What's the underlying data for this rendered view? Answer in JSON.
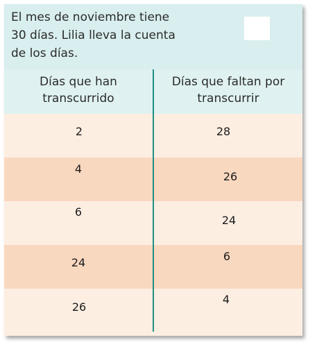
{
  "prompt": {
    "lines": [
      "El mes de noviembre tiene",
      "30 días. Lilia lleva la cuenta",
      "de los días."
    ]
  },
  "table": {
    "headers": [
      [
        "Días que han",
        "transcurrido"
      ],
      [
        "Días que faltan por",
        "transcurrir"
      ]
    ],
    "rows": [
      {
        "elapsed": "2",
        "remaining": "28"
      },
      {
        "elapsed": "4",
        "remaining": "26"
      },
      {
        "elapsed": "6",
        "remaining": "24"
      },
      {
        "elapsed": "24",
        "remaining": "6"
      },
      {
        "elapsed": "26",
        "remaining": "4"
      }
    ]
  },
  "colors": {
    "header_bg": "#d9eeee",
    "row_light": "#fdeee2",
    "row_dark": "#f9d8c0",
    "divider": "#1f8f83"
  }
}
